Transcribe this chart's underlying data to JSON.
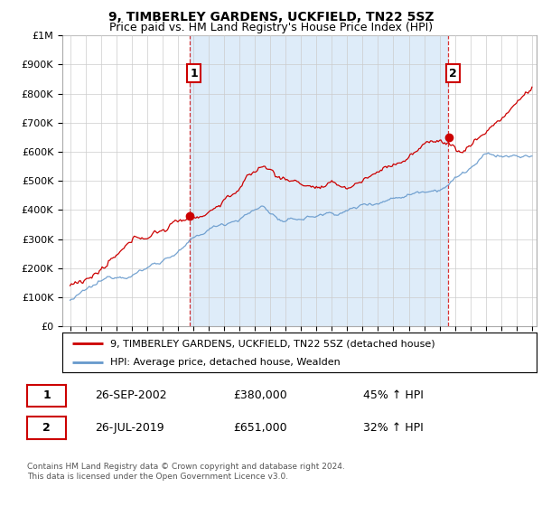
{
  "title": "9, TIMBERLEY GARDENS, UCKFIELD, TN22 5SZ",
  "subtitle": "Price paid vs. HM Land Registry's House Price Index (HPI)",
  "ylim": [
    0,
    1000000
  ],
  "yticks": [
    0,
    100000,
    200000,
    300000,
    400000,
    500000,
    600000,
    700000,
    800000,
    900000,
    1000000
  ],
  "ytick_labels": [
    "£0",
    "£100K",
    "£200K",
    "£300K",
    "£400K",
    "£500K",
    "£600K",
    "£700K",
    "£800K",
    "£900K",
    "£1M"
  ],
  "sale1_date": 2002.75,
  "sale1_price": 380000,
  "sale2_date": 2019.56,
  "sale2_price": 651000,
  "hpi_line_color": "#6699cc",
  "price_line_color": "#cc0000",
  "sale_marker_color": "#cc0000",
  "vline_color": "#cc0000",
  "grid_color": "#cccccc",
  "fill_color": "#d0e4f7",
  "background_color": "#ffffff",
  "legend1_label": "9, TIMBERLEY GARDENS, UCKFIELD, TN22 5SZ (detached house)",
  "legend2_label": "HPI: Average price, detached house, Wealden",
  "table_row1": [
    "1",
    "26-SEP-2002",
    "£380,000",
    "45% ↑ HPI"
  ],
  "table_row2": [
    "2",
    "26-JUL-2019",
    "£651,000",
    "32% ↑ HPI"
  ],
  "footnote": "Contains HM Land Registry data © Crown copyright and database right 2024.\nThis data is licensed under the Open Government Licence v3.0.",
  "title_fontsize": 10,
  "subtitle_fontsize": 9,
  "xlim_left": 1995.0,
  "xlim_right": 2025.3
}
